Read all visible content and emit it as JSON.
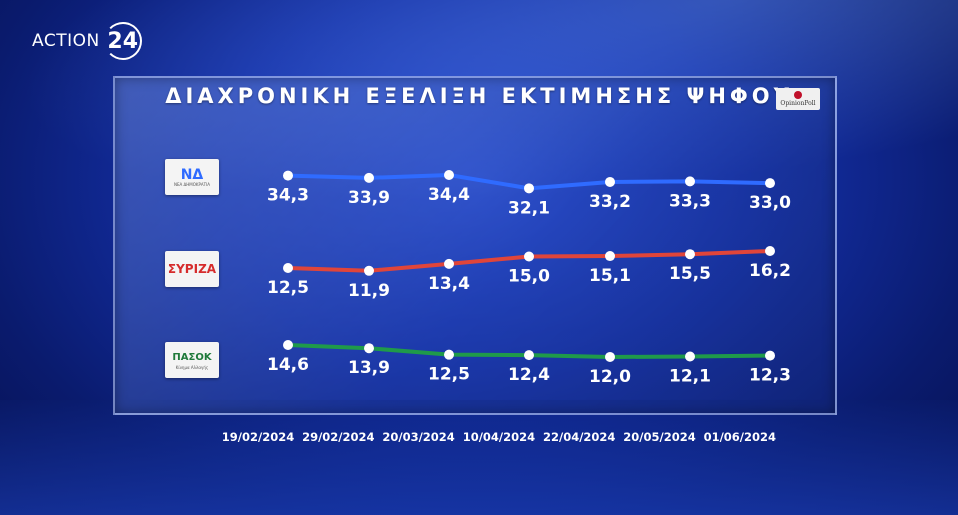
{
  "brand": {
    "word": "ACTION",
    "number": "24"
  },
  "source_logo": "OpinionPoll",
  "chart_data": {
    "type": "line",
    "title": "ΔΙΑΧΡΟΝΙΚΗ ΕΞΕΛΙΞΗ ΕΚΤΙΜΗΣΗΣ ΨΗΦΟΥ",
    "categories": [
      "19/02/2024",
      "29/02/2024",
      "20/03/2024",
      "10/04/2024",
      "22/04/2024",
      "20/05/2024",
      "01/06/2024"
    ],
    "series": [
      {
        "logo": "ΝΔ",
        "logo_caption": "ΝΕΑ ΔΗΜΟΚΡΑΤΙΑ",
        "color": "#2f6bff",
        "values": [
          34.3,
          33.9,
          34.4,
          32.1,
          33.2,
          33.3,
          33.0
        ],
        "labels": [
          "34,3",
          "33,9",
          "34,4",
          "32,1",
          "33,2",
          "33,3",
          "33,0"
        ]
      },
      {
        "logo": "ΣΥΡΙΖΑ",
        "logo_caption": "",
        "color": "#e0453a",
        "values": [
          12.5,
          11.9,
          13.4,
          15.0,
          15.1,
          15.5,
          16.2
        ],
        "labels": [
          "12,5",
          "11,9",
          "13,4",
          "15,0",
          "15,1",
          "15,5",
          "16,2"
        ]
      },
      {
        "logo": "ΠΑΣΟΚ",
        "logo_caption": "Κίνημα Αλλαγής",
        "color": "#1f9a4a",
        "values": [
          14.6,
          13.9,
          12.5,
          12.4,
          12.0,
          12.1,
          12.3
        ],
        "labels": [
          "14,6",
          "13,9",
          "12,5",
          "12,4",
          "12,0",
          "12,1",
          "12,3"
        ]
      }
    ],
    "grid": false,
    "legend": "left"
  }
}
